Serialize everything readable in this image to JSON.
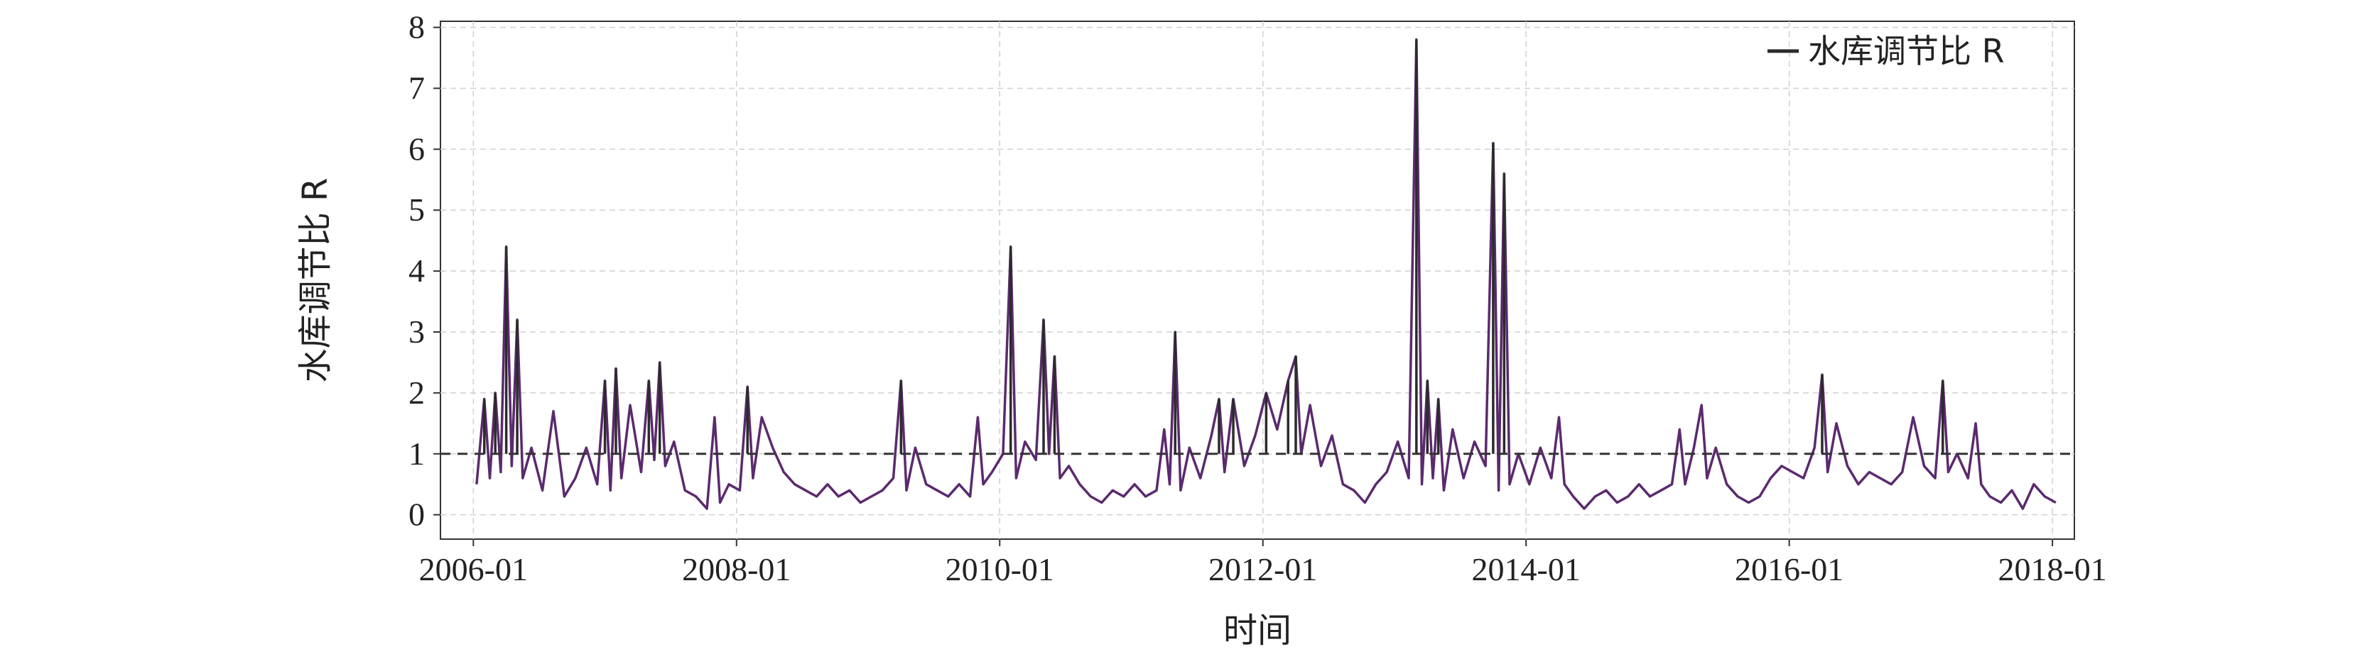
{
  "chart_data": {
    "type": "line",
    "title": "",
    "xlabel": "时间",
    "ylabel": "水库调节比 R",
    "xlim": [
      "2005-10",
      "2018-03"
    ],
    "ylim": [
      -0.4,
      8.1
    ],
    "grid": true,
    "legend_position": "top-right",
    "x_tick_labels": [
      "2006-01",
      "2008-01",
      "2010-01",
      "2012-01",
      "2014-01",
      "2016-01",
      "2018-01"
    ],
    "y_tick_labels": [
      "0",
      "1",
      "2",
      "3",
      "4",
      "5",
      "6",
      "7",
      "8"
    ],
    "reference_line": {
      "y": 1,
      "style": "dashed",
      "color": "#333333"
    },
    "colors": {
      "line_low": "#5b2a6e",
      "line_high": "#2b2b2b",
      "grid": "#d0d0d0"
    },
    "series": [
      {
        "name": "水库调节比 R",
        "color": "#5b2a6e",
        "points": [
          [
            "2006-01",
            0.5
          ],
          [
            "2006-02",
            1.9
          ],
          [
            "2006-02",
            0.6
          ],
          [
            "2006-03",
            2.0
          ],
          [
            "2006-03",
            0.7
          ],
          [
            "2006-04",
            4.4
          ],
          [
            "2006-04",
            0.8
          ],
          [
            "2006-05",
            3.2
          ],
          [
            "2006-05",
            0.6
          ],
          [
            "2006-06",
            1.1
          ],
          [
            "2006-07",
            0.4
          ],
          [
            "2006-08",
            1.7
          ],
          [
            "2006-09",
            0.3
          ],
          [
            "2006-10",
            0.6
          ],
          [
            "2006-11",
            1.1
          ],
          [
            "2006-12",
            0.5
          ],
          [
            "2007-01",
            2.2
          ],
          [
            "2007-01",
            0.4
          ],
          [
            "2007-02",
            2.4
          ],
          [
            "2007-02",
            0.6
          ],
          [
            "2007-03",
            1.8
          ],
          [
            "2007-04",
            0.7
          ],
          [
            "2007-05",
            2.2
          ],
          [
            "2007-05",
            0.9
          ],
          [
            "2007-06",
            2.5
          ],
          [
            "2007-06",
            0.8
          ],
          [
            "2007-07",
            1.2
          ],
          [
            "2007-08",
            0.4
          ],
          [
            "2007-09",
            0.3
          ],
          [
            "2007-10",
            0.1
          ],
          [
            "2007-11",
            1.6
          ],
          [
            "2007-11",
            0.2
          ],
          [
            "2007-12",
            0.5
          ],
          [
            "2008-01",
            0.4
          ],
          [
            "2008-02",
            2.1
          ],
          [
            "2008-02",
            0.6
          ],
          [
            "2008-03",
            1.6
          ],
          [
            "2008-04",
            1.1
          ],
          [
            "2008-05",
            0.7
          ],
          [
            "2008-06",
            0.5
          ],
          [
            "2008-07",
            0.4
          ],
          [
            "2008-08",
            0.3
          ],
          [
            "2008-09",
            0.5
          ],
          [
            "2008-10",
            0.3
          ],
          [
            "2008-11",
            0.4
          ],
          [
            "2008-12",
            0.2
          ],
          [
            "2009-01",
            0.3
          ],
          [
            "2009-02",
            0.4
          ],
          [
            "2009-03",
            0.6
          ],
          [
            "2009-04",
            2.2
          ],
          [
            "2009-04",
            0.4
          ],
          [
            "2009-05",
            1.1
          ],
          [
            "2009-06",
            0.5
          ],
          [
            "2009-07",
            0.4
          ],
          [
            "2009-08",
            0.3
          ],
          [
            "2009-09",
            0.5
          ],
          [
            "2009-10",
            0.3
          ],
          [
            "2009-11",
            1.6
          ],
          [
            "2009-11",
            0.5
          ],
          [
            "2009-12",
            0.7
          ],
          [
            "2010-01",
            1.0
          ],
          [
            "2010-02",
            4.4
          ],
          [
            "2010-02",
            0.6
          ],
          [
            "2010-03",
            1.2
          ],
          [
            "2010-04",
            0.9
          ],
          [
            "2010-05",
            3.2
          ],
          [
            "2010-05",
            1.0
          ],
          [
            "2010-06",
            2.6
          ],
          [
            "2010-06",
            0.6
          ],
          [
            "2010-07",
            0.8
          ],
          [
            "2010-08",
            0.5
          ],
          [
            "2010-09",
            0.3
          ],
          [
            "2010-10",
            0.2
          ],
          [
            "2010-11",
            0.4
          ],
          [
            "2010-12",
            0.3
          ],
          [
            "2011-01",
            0.5
          ],
          [
            "2011-02",
            0.3
          ],
          [
            "2011-03",
            0.4
          ],
          [
            "2011-04",
            1.4
          ],
          [
            "2011-04",
            0.5
          ],
          [
            "2011-05",
            3.0
          ],
          [
            "2011-05",
            0.4
          ],
          [
            "2011-06",
            1.1
          ],
          [
            "2011-07",
            0.6
          ],
          [
            "2011-08",
            1.3
          ],
          [
            "2011-09",
            1.9
          ],
          [
            "2011-09",
            0.7
          ],
          [
            "2011-10",
            1.9
          ],
          [
            "2011-11",
            0.8
          ],
          [
            "2011-12",
            1.3
          ],
          [
            "2012-01",
            2.0
          ],
          [
            "2012-02",
            1.4
          ],
          [
            "2012-03",
            2.2
          ],
          [
            "2012-04",
            2.6
          ],
          [
            "2012-04",
            1.0
          ],
          [
            "2012-05",
            1.8
          ],
          [
            "2012-06",
            0.8
          ],
          [
            "2012-07",
            1.3
          ],
          [
            "2012-08",
            0.5
          ],
          [
            "2012-09",
            0.4
          ],
          [
            "2012-10",
            0.2
          ],
          [
            "2012-11",
            0.5
          ],
          [
            "2012-12",
            0.7
          ],
          [
            "2013-01",
            1.2
          ],
          [
            "2013-02",
            0.6
          ],
          [
            "2013-03",
            7.8
          ],
          [
            "2013-03",
            0.5
          ],
          [
            "2013-04",
            2.2
          ],
          [
            "2013-04",
            0.6
          ],
          [
            "2013-05",
            1.9
          ],
          [
            "2013-05",
            0.4
          ],
          [
            "2013-06",
            1.4
          ],
          [
            "2013-07",
            0.6
          ],
          [
            "2013-08",
            1.2
          ],
          [
            "2013-09",
            0.8
          ],
          [
            "2013-10",
            6.1
          ],
          [
            "2013-10",
            0.4
          ],
          [
            "2013-11",
            5.6
          ],
          [
            "2013-11",
            0.5
          ],
          [
            "2013-12",
            1.0
          ],
          [
            "2014-01",
            0.5
          ],
          [
            "2014-02",
            1.1
          ],
          [
            "2014-03",
            0.6
          ],
          [
            "2014-04",
            1.6
          ],
          [
            "2014-04",
            0.5
          ],
          [
            "2014-05",
            0.3
          ],
          [
            "2014-06",
            0.1
          ],
          [
            "2014-07",
            0.3
          ],
          [
            "2014-08",
            0.4
          ],
          [
            "2014-09",
            0.2
          ],
          [
            "2014-10",
            0.3
          ],
          [
            "2014-11",
            0.5
          ],
          [
            "2014-12",
            0.3
          ],
          [
            "2015-01",
            0.4
          ],
          [
            "2015-02",
            0.5
          ],
          [
            "2015-03",
            1.4
          ],
          [
            "2015-03",
            0.5
          ],
          [
            "2015-04",
            1.1
          ],
          [
            "2015-05",
            1.8
          ],
          [
            "2015-05",
            0.6
          ],
          [
            "2015-06",
            1.1
          ],
          [
            "2015-07",
            0.5
          ],
          [
            "2015-08",
            0.3
          ],
          [
            "2015-09",
            0.2
          ],
          [
            "2015-10",
            0.3
          ],
          [
            "2015-11",
            0.6
          ],
          [
            "2015-12",
            0.8
          ],
          [
            "2016-01",
            0.7
          ],
          [
            "2016-02",
            0.6
          ],
          [
            "2016-03",
            1.1
          ],
          [
            "2016-04",
            2.3
          ],
          [
            "2016-04",
            0.7
          ],
          [
            "2016-05",
            1.5
          ],
          [
            "2016-06",
            0.8
          ],
          [
            "2016-07",
            0.5
          ],
          [
            "2016-08",
            0.7
          ],
          [
            "2016-09",
            0.6
          ],
          [
            "2016-10",
            0.5
          ],
          [
            "2016-11",
            0.7
          ],
          [
            "2016-12",
            1.6
          ],
          [
            "2017-01",
            0.8
          ],
          [
            "2017-02",
            0.6
          ],
          [
            "2017-03",
            2.2
          ],
          [
            "2017-03",
            0.7
          ],
          [
            "2017-04",
            1.0
          ],
          [
            "2017-05",
            0.6
          ],
          [
            "2017-06",
            1.5
          ],
          [
            "2017-06",
            0.5
          ],
          [
            "2017-07",
            0.3
          ],
          [
            "2017-08",
            0.2
          ],
          [
            "2017-09",
            0.4
          ],
          [
            "2017-10",
            0.1
          ],
          [
            "2017-11",
            0.5
          ],
          [
            "2017-12",
            0.3
          ],
          [
            "2018-01",
            0.2
          ]
        ]
      }
    ]
  }
}
